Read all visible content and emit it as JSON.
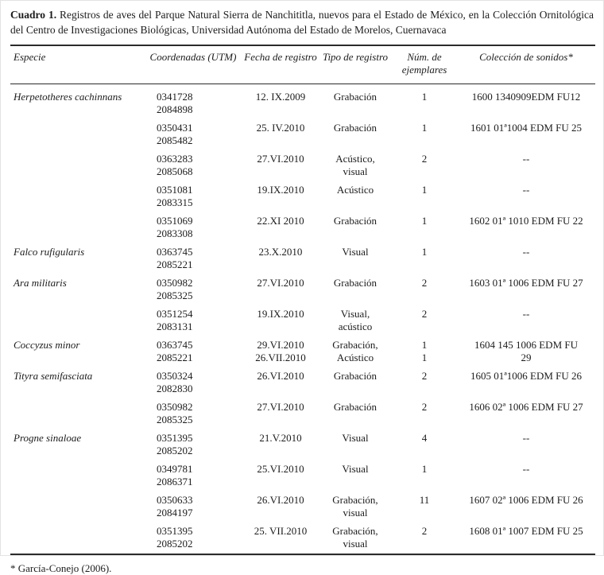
{
  "caption": {
    "label": "Cuadro 1.",
    "text": " Registros de aves del Parque Natural Sierra de Nanchititla, nuevos para el Estado de México, en la Colección Ornitológica del Centro de Investigaciones Biológicas, Universidad Autónoma del Estado de Morelos, Cuernavaca"
  },
  "columns": [
    "Especie",
    "Coordenadas (UTM)",
    "Fecha de registro",
    "Tipo de registro",
    "Núm. de ejemplares",
    "Colección de sonidos*"
  ],
  "rows": [
    {
      "species": "Herpetotheres cachinnans",
      "coords": "0341728\n2084898",
      "date": "12. IX.2009",
      "type": "Grabación",
      "count": "1",
      "sounds": "1600 1340909EDM FU12"
    },
    {
      "species": "",
      "coords": "0350431\n2085482",
      "date": "25. IV.2010",
      "type": "Grabación",
      "count": "1",
      "sounds": "1601 01ª1004 EDM FU 25"
    },
    {
      "species": "",
      "coords": "0363283\n2085068",
      "date": "27.VI.2010",
      "type": "Acústico,\nvisual",
      "count": "2",
      "sounds": "--"
    },
    {
      "species": "",
      "coords": "0351081\n2083315",
      "date": "19.IX.2010",
      "type": "Acústico",
      "count": "1",
      "sounds": "--"
    },
    {
      "species": "",
      "coords": "0351069\n2083308",
      "date": "22.XI 2010",
      "type": "Grabación",
      "count": "1",
      "sounds": "1602 01ª 1010 EDM FU 22"
    },
    {
      "species": "Falco rufigularis",
      "coords": "0363745\n2085221",
      "date": "23.X.2010",
      "type": "Visual",
      "count": "1",
      "sounds": "--"
    },
    {
      "species": "Ara militaris",
      "coords": "0350982\n2085325",
      "date": "27.VI.2010",
      "type": "Grabación",
      "count": "2",
      "sounds": "1603 01ª 1006 EDM FU 27"
    },
    {
      "species": "",
      "coords": "0351254\n2083131",
      "date": "19.IX.2010",
      "type": "Visual,\nacústico",
      "count": "2",
      "sounds": "--"
    },
    {
      "species": "Coccyzus minor",
      "coords": "0363745\n2085221",
      "date": "29.VI.2010\n26.VII.2010",
      "type": "Grabación,\nAcústico",
      "count": "1\n1",
      "sounds": "1604 145 1006 EDM FU\n29"
    },
    {
      "species": "Tityra semifasciata",
      "coords": "0350324\n2082830",
      "date": "26.VI.2010",
      "type": "Grabación",
      "count": "2",
      "sounds": "1605 01ª1006 EDM FU 26"
    },
    {
      "species": "",
      "coords": "0350982\n2085325",
      "date": "27.VI.2010",
      "type": "Grabación",
      "count": "2",
      "sounds": "1606 02ª 1006 EDM FU 27"
    },
    {
      "species": "Progne sinaloae",
      "coords": "0351395\n2085202",
      "date": "21.V.2010",
      "type": "Visual",
      "count": "4",
      "sounds": "--"
    },
    {
      "species": "",
      "coords": "0349781\n2086371",
      "date": "25.VI.2010",
      "type": "Visual",
      "count": "1",
      "sounds": "--"
    },
    {
      "species": "",
      "coords": "0350633\n2084197",
      "date": "26.VI.2010",
      "type": "Grabación,\nvisual",
      "count": "11",
      "sounds": "1607 02ª 1006 EDM FU 26"
    },
    {
      "species": "",
      "coords": "0351395\n2085202",
      "date": "25. VII.2010",
      "type": "Grabación,\nvisual",
      "count": "2",
      "sounds": "1608 01ª 1007 EDM FU 25"
    }
  ],
  "footnote": "* García-Conejo (2006)."
}
